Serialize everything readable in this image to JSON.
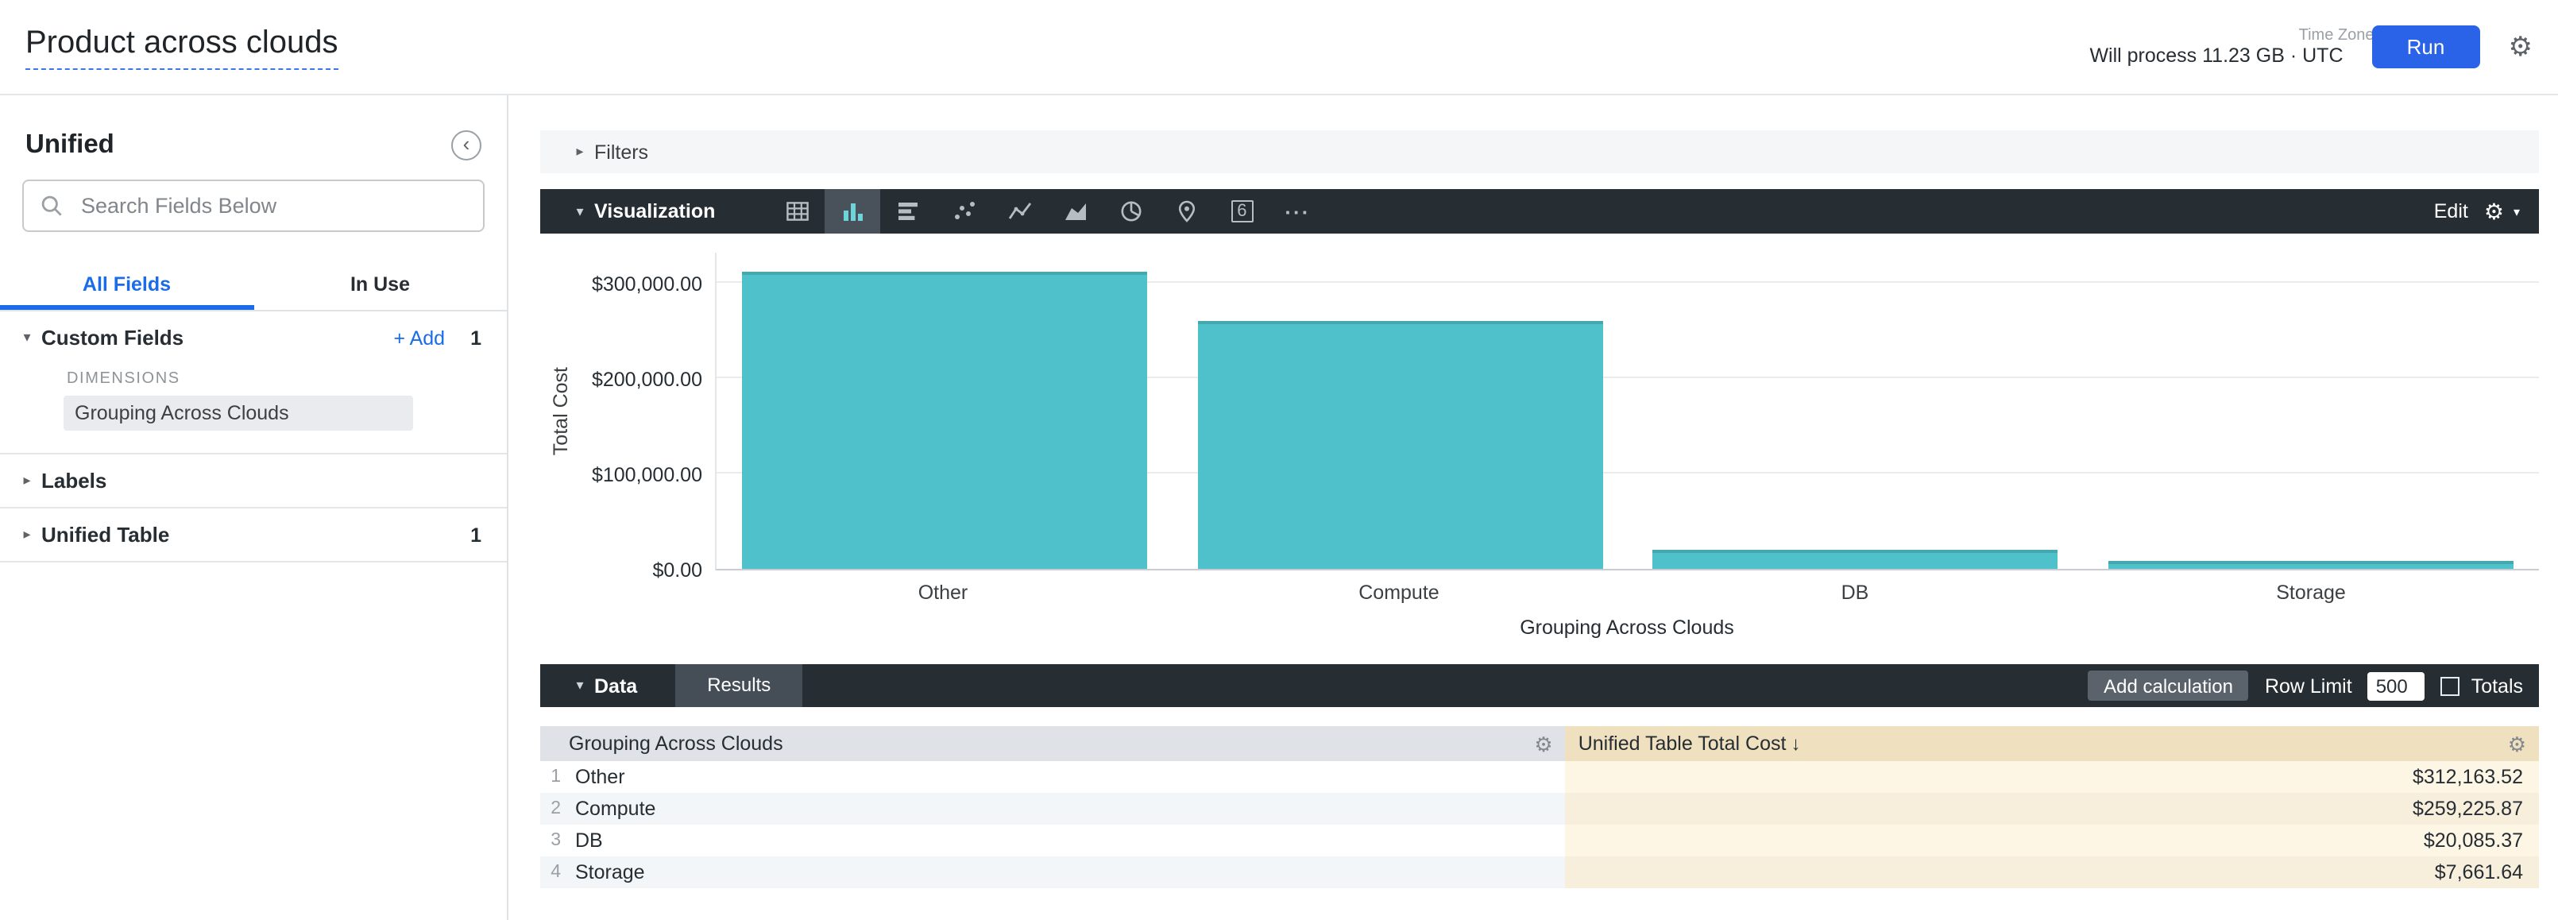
{
  "header": {
    "title": "Product across clouds",
    "process_text": "Will process 11.23 GB · UTC",
    "time_zone_label": "Time Zone",
    "run_label": "Run"
  },
  "sidebar": {
    "title": "Unified",
    "search_placeholder": "Search Fields Below",
    "tabs": [
      {
        "label": "All Fields"
      },
      {
        "label": "In Use"
      }
    ],
    "custom_fields": {
      "label": "Custom Fields",
      "add_label": "+ Add",
      "count": "1",
      "group_label": "DIMENSIONS",
      "fields": [
        "Grouping Across Clouds"
      ]
    },
    "labels": {
      "label": "Labels"
    },
    "unified_table": {
      "label": "Unified Table",
      "count": "1"
    }
  },
  "filters": {
    "label": "Filters"
  },
  "visualization": {
    "label": "Visualization",
    "edit_label": "Edit",
    "selected_type": "column",
    "icon_names": [
      "table-icon",
      "column-chart-icon",
      "bar-chart-icon",
      "scatterplot-icon",
      "line-chart-icon",
      "area-chart-icon",
      "pie-chart-icon",
      "map-icon",
      "single-value-icon",
      "more-icon"
    ],
    "single_value_glyph": "6",
    "more_glyph": "···"
  },
  "chart_data": {
    "type": "bar",
    "title": "",
    "categories": [
      "Other",
      "Compute",
      "DB",
      "Storage"
    ],
    "values": [
      312163.52,
      259225.87,
      20085.37,
      7661.64
    ],
    "series": [
      {
        "name": "Unified Table Total Cost",
        "values": [
          312163.52,
          259225.87,
          20085.37,
          7661.64
        ]
      }
    ],
    "xlabel": "Grouping Across Clouds",
    "ylabel": "Total Cost",
    "ylim": [
      0,
      300000
    ],
    "ytick_values": [
      0,
      100000,
      200000,
      300000
    ],
    "ytick_labels": [
      "$0.00",
      "$100,000.00",
      "$200,000.00",
      "$300,000.00"
    ],
    "grid": true,
    "legend": false,
    "bar_color": "#4fc1ca"
  },
  "data_section": {
    "label": "Data",
    "results_label": "Results",
    "add_calculation_label": "Add calculation",
    "row_limit_label": "Row Limit",
    "row_limit_value": "500",
    "totals_label": "Totals",
    "table": {
      "dimension_header": "Grouping Across Clouds",
      "measure_header": "Unified Table Total Cost",
      "sort_indicator": "↓",
      "rows": [
        {
          "num": "1",
          "dimension": "Other",
          "value": "$312,163.52"
        },
        {
          "num": "2",
          "dimension": "Compute",
          "value": "$259,225.87"
        },
        {
          "num": "3",
          "dimension": "DB",
          "value": "$20,085.37"
        },
        {
          "num": "4",
          "dimension": "Storage",
          "value": "$7,661.64"
        }
      ]
    }
  }
}
